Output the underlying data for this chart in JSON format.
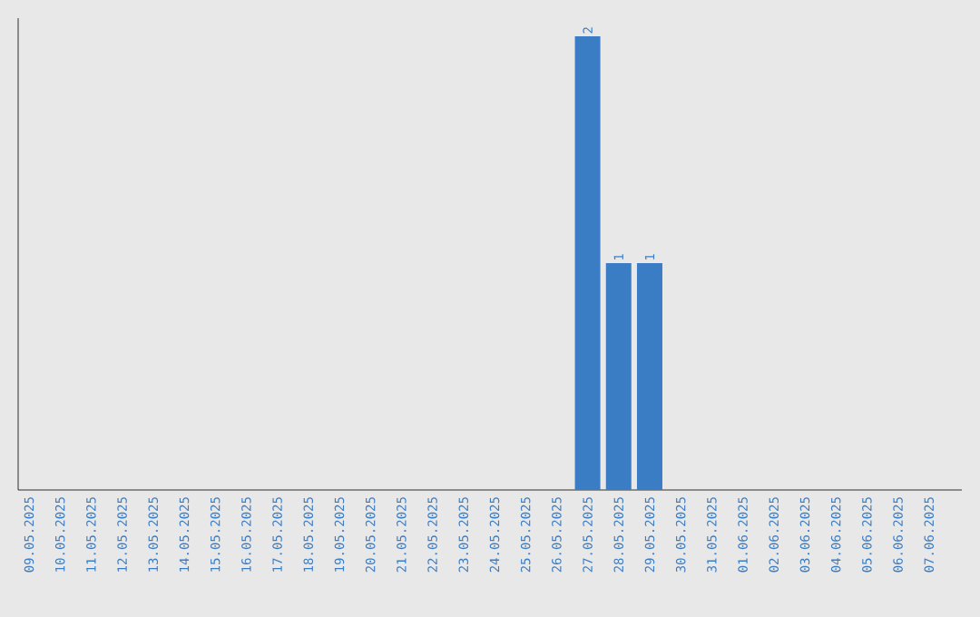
{
  "chart_data": {
    "type": "bar",
    "categories": [
      "09.05.2025",
      "10.05.2025",
      "11.05.2025",
      "12.05.2025",
      "13.05.2025",
      "14.05.2025",
      "15.05.2025",
      "16.05.2025",
      "17.05.2025",
      "18.05.2025",
      "19.05.2025",
      "20.05.2025",
      "21.05.2025",
      "22.05.2025",
      "23.05.2025",
      "24.05.2025",
      "25.05.2025",
      "26.05.2025",
      "27.05.2025",
      "28.05.2025",
      "29.05.2025",
      "30.05.2025",
      "31.05.2025",
      "01.06.2025",
      "02.06.2025",
      "03.06.2025",
      "04.06.2025",
      "05.06.2025",
      "06.06.2025",
      "07.06.2025"
    ],
    "values": [
      null,
      null,
      null,
      null,
      null,
      null,
      null,
      null,
      null,
      null,
      null,
      null,
      null,
      null,
      null,
      null,
      null,
      null,
      2,
      1,
      1,
      null,
      null,
      null,
      null,
      null,
      null,
      null,
      null,
      null
    ],
    "value_labels": [
      null,
      null,
      null,
      null,
      null,
      null,
      null,
      null,
      null,
      null,
      null,
      null,
      null,
      null,
      null,
      null,
      null,
      null,
      "2",
      "1",
      "1",
      null,
      null,
      null,
      null,
      null,
      null,
      null,
      null,
      null
    ],
    "color": "#3a7dc4",
    "ylim": [
      0,
      2.08
    ],
    "tick_labels": "x",
    "grid": false
  }
}
